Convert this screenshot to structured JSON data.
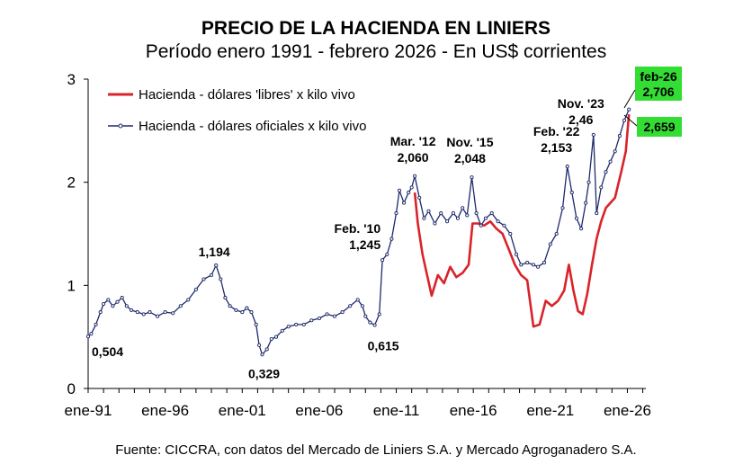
{
  "chart_data": {
    "type": "line",
    "title": "PRECIO DE LA HACIENDA EN LINIERS",
    "subtitle": "Período enero 1991 - febrero 2026 - En US$ corrientes",
    "source": "Fuente: CICCRA, con datos del Mercado de Liniers S.A. y Mercado Agroganadero S.A.",
    "xlim": [
      1991.0,
      2027.2
    ],
    "ylim": [
      0,
      3
    ],
    "x_ticks": [
      {
        "label": "ene-91",
        "x": 1991
      },
      {
        "label": "ene-96",
        "x": 1996
      },
      {
        "label": "ene-01",
        "x": 2001
      },
      {
        "label": "ene-06",
        "x": 2006
      },
      {
        "label": "ene-11",
        "x": 2011
      },
      {
        "label": "ene-16",
        "x": 2016
      },
      {
        "label": "ene-21",
        "x": 2021
      },
      {
        "label": "ene-26",
        "x": 2026
      }
    ],
    "y_ticks": [
      {
        "label": "0",
        "y": 0
      },
      {
        "label": "1",
        "y": 1
      },
      {
        "label": "2",
        "y": 2
      },
      {
        "label": "3",
        "y": 3
      }
    ],
    "legend_position": "top-left",
    "series": [
      {
        "name": "Hacienda - dólares oficiales x kilo vivo",
        "color": "#1f2a6b",
        "marker": "dot",
        "points": [
          [
            1991.0,
            0.504
          ],
          [
            1991.2,
            0.53
          ],
          [
            1991.5,
            0.62
          ],
          [
            1991.8,
            0.74
          ],
          [
            1992.0,
            0.82
          ],
          [
            1992.3,
            0.86
          ],
          [
            1992.6,
            0.8
          ],
          [
            1992.9,
            0.84
          ],
          [
            1993.2,
            0.88
          ],
          [
            1993.5,
            0.8
          ],
          [
            1993.8,
            0.76
          ],
          [
            1994.2,
            0.74
          ],
          [
            1994.6,
            0.72
          ],
          [
            1995.0,
            0.74
          ],
          [
            1995.5,
            0.7
          ],
          [
            1996.0,
            0.74
          ],
          [
            1996.5,
            0.73
          ],
          [
            1997.0,
            0.8
          ],
          [
            1997.5,
            0.86
          ],
          [
            1998.0,
            0.96
          ],
          [
            1998.5,
            1.06
          ],
          [
            1999.0,
            1.1
          ],
          [
            1999.3,
            1.194
          ],
          [
            1999.6,
            1.06
          ],
          [
            1999.9,
            0.88
          ],
          [
            2000.2,
            0.8
          ],
          [
            2000.6,
            0.76
          ],
          [
            2001.0,
            0.74
          ],
          [
            2001.3,
            0.78
          ],
          [
            2001.6,
            0.74
          ],
          [
            2001.9,
            0.62
          ],
          [
            2002.1,
            0.42
          ],
          [
            2002.3,
            0.329
          ],
          [
            2002.6,
            0.38
          ],
          [
            2002.9,
            0.48
          ],
          [
            2003.2,
            0.5
          ],
          [
            2003.6,
            0.56
          ],
          [
            2004.0,
            0.6
          ],
          [
            2004.5,
            0.62
          ],
          [
            2005.0,
            0.62
          ],
          [
            2005.5,
            0.66
          ],
          [
            2006.0,
            0.68
          ],
          [
            2006.5,
            0.72
          ],
          [
            2007.0,
            0.7
          ],
          [
            2007.5,
            0.74
          ],
          [
            2008.0,
            0.8
          ],
          [
            2008.5,
            0.86
          ],
          [
            2008.8,
            0.8
          ],
          [
            2009.0,
            0.7
          ],
          [
            2009.3,
            0.64
          ],
          [
            2009.6,
            0.615
          ],
          [
            2009.9,
            0.72
          ],
          [
            2010.1,
            1.245
          ],
          [
            2010.4,
            1.3
          ],
          [
            2010.7,
            1.45
          ],
          [
            2011.0,
            1.7
          ],
          [
            2011.2,
            1.92
          ],
          [
            2011.5,
            1.8
          ],
          [
            2011.8,
            1.9
          ],
          [
            2012.0,
            1.95
          ],
          [
            2012.2,
            2.06
          ],
          [
            2012.5,
            1.85
          ],
          [
            2012.8,
            1.65
          ],
          [
            2013.1,
            1.72
          ],
          [
            2013.5,
            1.6
          ],
          [
            2013.9,
            1.7
          ],
          [
            2014.3,
            1.62
          ],
          [
            2014.7,
            1.7
          ],
          [
            2015.0,
            1.65
          ],
          [
            2015.3,
            1.75
          ],
          [
            2015.6,
            1.68
          ],
          [
            2015.9,
            2.048
          ],
          [
            2016.2,
            1.7
          ],
          [
            2016.5,
            1.58
          ],
          [
            2016.8,
            1.65
          ],
          [
            2017.2,
            1.7
          ],
          [
            2017.6,
            1.62
          ],
          [
            2018.0,
            1.58
          ],
          [
            2018.4,
            1.5
          ],
          [
            2018.8,
            1.3
          ],
          [
            2019.1,
            1.2
          ],
          [
            2019.5,
            1.22
          ],
          [
            2019.9,
            1.2
          ],
          [
            2020.2,
            1.18
          ],
          [
            2020.6,
            1.22
          ],
          [
            2021.0,
            1.4
          ],
          [
            2021.4,
            1.5
          ],
          [
            2021.8,
            1.75
          ],
          [
            2022.1,
            2.153
          ],
          [
            2022.4,
            1.9
          ],
          [
            2022.7,
            1.65
          ],
          [
            2023.0,
            1.55
          ],
          [
            2023.3,
            1.8
          ],
          [
            2023.5,
            2.0
          ],
          [
            2023.8,
            2.46
          ],
          [
            2024.0,
            1.7
          ],
          [
            2024.3,
            1.95
          ],
          [
            2024.6,
            2.1
          ],
          [
            2024.9,
            2.2
          ],
          [
            2025.2,
            2.3
          ],
          [
            2025.5,
            2.45
          ],
          [
            2025.8,
            2.6
          ],
          [
            2026.1,
            2.706
          ]
        ]
      },
      {
        "name": "Hacienda - dólares 'libres' x kilo vivo",
        "color": "#d9232a",
        "marker": "none",
        "points": [
          [
            2012.2,
            1.9
          ],
          [
            2012.4,
            1.6
          ],
          [
            2012.7,
            1.3
          ],
          [
            2013.0,
            1.1
          ],
          [
            2013.3,
            0.9
          ],
          [
            2013.7,
            1.1
          ],
          [
            2014.1,
            1.02
          ],
          [
            2014.5,
            1.18
          ],
          [
            2014.9,
            1.08
          ],
          [
            2015.3,
            1.12
          ],
          [
            2015.7,
            1.2
          ],
          [
            2015.95,
            1.6
          ],
          [
            2016.3,
            1.6
          ],
          [
            2016.7,
            1.58
          ],
          [
            2017.1,
            1.62
          ],
          [
            2017.5,
            1.55
          ],
          [
            2017.9,
            1.5
          ],
          [
            2018.3,
            1.35
          ],
          [
            2018.7,
            1.2
          ],
          [
            2019.1,
            1.1
          ],
          [
            2019.5,
            1.05
          ],
          [
            2019.9,
            0.6
          ],
          [
            2020.3,
            0.62
          ],
          [
            2020.7,
            0.85
          ],
          [
            2021.1,
            0.8
          ],
          [
            2021.5,
            0.85
          ],
          [
            2021.9,
            0.95
          ],
          [
            2022.2,
            1.2
          ],
          [
            2022.5,
            0.95
          ],
          [
            2022.8,
            0.75
          ],
          [
            2023.1,
            0.72
          ],
          [
            2023.4,
            0.92
          ],
          [
            2023.7,
            1.2
          ],
          [
            2024.0,
            1.45
          ],
          [
            2024.3,
            1.62
          ],
          [
            2024.6,
            1.75
          ],
          [
            2024.9,
            1.8
          ],
          [
            2025.2,
            1.85
          ],
          [
            2025.6,
            2.1
          ],
          [
            2025.9,
            2.3
          ],
          [
            2026.1,
            2.659
          ]
        ]
      }
    ],
    "annotations": [
      {
        "lines": [
          "0,504"
        ],
        "x": 1991.0,
        "y": 0.504,
        "anchor": "start",
        "dx": 4,
        "dy": 22
      },
      {
        "lines": [
          "1,194"
        ],
        "x": 1999.3,
        "y": 1.194,
        "anchor": "middle",
        "dx": -2,
        "dy": -10
      },
      {
        "lines": [
          "0,329"
        ],
        "x": 2002.3,
        "y": 0.329,
        "anchor": "middle",
        "dx": 2,
        "dy": 26
      },
      {
        "lines": [
          "Feb. '10",
          "1,245"
        ],
        "x": 2010.1,
        "y": 1.245,
        "anchor": "end",
        "dx": -2,
        "dy": -30
      },
      {
        "lines": [
          "0,615"
        ],
        "x": 2009.6,
        "y": 0.615,
        "anchor": "start",
        "dx": -8,
        "dy": 28
      },
      {
        "lines": [
          "Mar. '12",
          "2,060"
        ],
        "x": 2012.2,
        "y": 2.06,
        "anchor": "middle",
        "dx": -2,
        "dy": -34
      },
      {
        "lines": [
          "Nov. '15",
          "2,048"
        ],
        "x": 2015.9,
        "y": 2.048,
        "anchor": "middle",
        "dx": -2,
        "dy": -34
      },
      {
        "lines": [
          "Feb. '22",
          "2,153"
        ],
        "x": 2022.1,
        "y": 2.153,
        "anchor": "middle",
        "dx": -12,
        "dy": -34
      },
      {
        "lines": [
          "Nov. '23",
          "2,46"
        ],
        "x": 2023.8,
        "y": 2.46,
        "anchor": "middle",
        "dx": -14,
        "dy": -30
      }
    ],
    "highlight_boxes": [
      {
        "lines": [
          "feb-26",
          "2,706"
        ],
        "color": "#33dd33"
      },
      {
        "lines": [
          "2,659"
        ],
        "color": "#33dd33"
      }
    ]
  }
}
